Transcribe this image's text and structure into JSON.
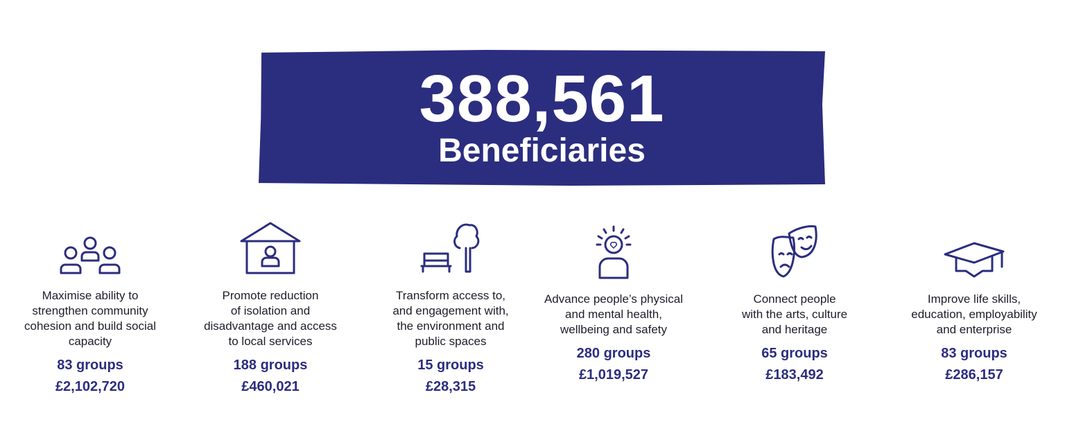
{
  "headline": {
    "value": "388,561",
    "label": "Beneficiaries",
    "banner_color": "#2b2d7f"
  },
  "outcomes": [
    {
      "icon": "people-group-icon",
      "text": "Maximise ability to\nstrengthen community\ncohesion and build social\ncapacity",
      "groups": "83 groups",
      "amount": "£2,102,720"
    },
    {
      "icon": "house-person-icon",
      "text": "Promote reduction\nof isolation and\ndisadvantage and access\nto local services",
      "groups": "188 groups",
      "amount": "£460,021"
    },
    {
      "icon": "bench-tree-icon",
      "text": "Transform access to,\nand engagement with,\nthe environment and\npublic spaces",
      "groups": "15 groups",
      "amount": "£28,315"
    },
    {
      "icon": "person-heart-icon",
      "text": "Advance people’s physical\nand mental health,\nwellbeing and safety",
      "groups": "280 groups",
      "amount": "£1,019,527"
    },
    {
      "icon": "theatre-masks-icon",
      "text": "Connect people\nwith the arts, culture\nand heritage",
      "groups": "65 groups",
      "amount": "£183,492"
    },
    {
      "icon": "graduation-cap-icon",
      "text": "Improve life skills,\neducation, employability\nand enterprise",
      "groups": "83 groups",
      "amount": "£286,157"
    }
  ]
}
